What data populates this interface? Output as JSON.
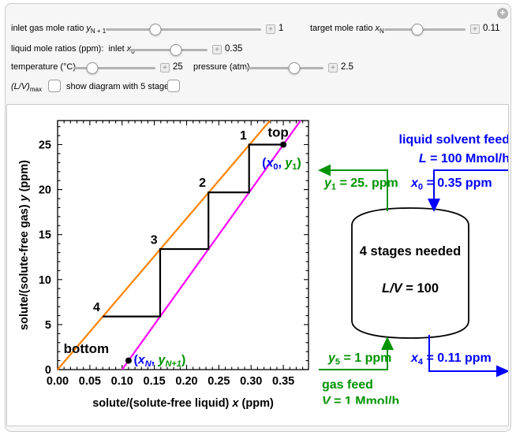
{
  "header": {
    "expand_icon": "+"
  },
  "controls": {
    "plus_icon": "+",
    "sliders": [
      {
        "label_pre": "inlet gas mole ratio ",
        "label_var": "y",
        "label_sub": "N + 1",
        "value": "1",
        "fraction": 0.32
      },
      {
        "label_pre": "target mole ratio ",
        "label_var": "x",
        "label_sub": "N",
        "value": "0.11",
        "fraction": 0.41
      },
      {
        "label_pre": "liquid mole ratios (ppm):  inlet ",
        "label_var": "x",
        "label_sub": "0",
        "value": "0.35",
        "fraction": 0.6
      },
      {
        "label_pre": "temperature (°C)",
        "label_var": "",
        "label_sub": "",
        "value": "25",
        "fraction": 0.23
      },
      {
        "label_pre": "pressure (atm)",
        "label_var": "",
        "label_sub": "",
        "value": "2.5",
        "fraction": 0.63
      }
    ],
    "checkboxes": [
      {
        "label_main": "(L/V)",
        "label_sub": "max",
        "checked": false
      },
      {
        "label_main": "show diagram with 5 stages",
        "label_sub": "",
        "checked": false
      }
    ]
  },
  "chart_data": {
    "type": "line",
    "xlabel": "solute/(solute-free liquid) x (ppm)",
    "ylabel": "solute/(solute-free gas) y (ppm)",
    "xlabel_parts": {
      "pre": "solute/(solute-free liquid) ",
      "var": "x",
      "post": " (ppm)"
    },
    "ylabel_parts": {
      "pre": "solute/(solute-free gas) ",
      "var": "y",
      "post": " (ppm)"
    },
    "xlim": [
      0,
      0.389
    ],
    "ylim": [
      0,
      27.67
    ],
    "grid": false,
    "x_ticks": {
      "minor_step": 0.01,
      "major": [
        {
          "v": 0,
          "label": "0.00"
        },
        {
          "v": 0.05,
          "label": "0.05"
        },
        {
          "v": 0.1,
          "label": "0.10"
        },
        {
          "v": 0.15,
          "label": "0.15"
        },
        {
          "v": 0.2,
          "label": "0.20"
        },
        {
          "v": 0.25,
          "label": "0.25"
        },
        {
          "v": 0.3,
          "label": "0.30"
        },
        {
          "v": 0.35,
          "label": "0.35"
        }
      ]
    },
    "y_ticks": {
      "minor_step": 1,
      "major": [
        {
          "v": 0,
          "label": "0"
        },
        {
          "v": 5,
          "label": "5"
        },
        {
          "v": 10,
          "label": "10"
        },
        {
          "v": 15,
          "label": "15"
        },
        {
          "v": 20,
          "label": "20"
        },
        {
          "v": 25,
          "label": "25"
        }
      ]
    },
    "series": [
      {
        "name": "equilibrium-line",
        "color": "#ff8300",
        "width": 2.2,
        "points": [
          [
            0,
            0
          ],
          [
            0.3294,
            27.67
          ]
        ]
      },
      {
        "name": "operating-line",
        "color": "#ff00ff",
        "width": 2.2,
        "points": [
          [
            0.1,
            0
          ],
          [
            0.3767,
            27.67
          ]
        ]
      },
      {
        "name": "stage-staircase",
        "color": "#000000",
        "width": 2.2,
        "points": [
          [
            0.35,
            25
          ],
          [
            0.2969,
            25
          ],
          [
            0.2969,
            19.69
          ],
          [
            0.2339,
            19.69
          ],
          [
            0.2339,
            13.39
          ],
          [
            0.159,
            13.39
          ],
          [
            0.159,
            5.9
          ],
          [
            0.0701,
            5.9
          ]
        ]
      }
    ],
    "stage_labels": [
      {
        "text": "1",
        "x": 0.288,
        "y": 26.0
      },
      {
        "text": "2",
        "x": 0.2245,
        "y": 20.75
      },
      {
        "text": "3",
        "x": 0.1495,
        "y": 14.4
      },
      {
        "text": "4",
        "x": 0.0605,
        "y": 6.9
      }
    ],
    "annotations": [
      {
        "text": "top",
        "x": 0.342,
        "y": 26.4
      },
      {
        "text": "bottom",
        "x": 0.0445,
        "y": 2.35
      }
    ],
    "point_label_colors": {
      "open": "#0000ff",
      "x_part": "#0000ff",
      "y_part": "#009300",
      "close": "#009300"
    },
    "points": [
      {
        "x": 0.35,
        "y": 25,
        "label_parts": {
          "open": "(",
          "x_var": "x",
          "x_sub": "0",
          "comma": ", ",
          "y_var": "y",
          "y_sub": "1",
          "close": ")"
        },
        "label_anchor": [
          0.317,
          23.0
        ]
      },
      {
        "x": 0.11,
        "y": 1,
        "label_parts": {
          "open": "(",
          "x_var": "x",
          "x_sub": "N",
          "comma": ", ",
          "y_var": "y",
          "y_sub": "N+1",
          "close": ")"
        },
        "label_anchor": [
          0.118,
          1.1
        ]
      }
    ]
  },
  "diagram": {
    "palette": {
      "stream_green": "#009300",
      "stream_blue": "#0000ff",
      "vessel_stroke": "#000000"
    },
    "liquid_feed_title": "liquid solvent feed",
    "liquid_feed_rate": {
      "var": "L",
      "rest": " = 100 Mmol/h"
    },
    "x0_label": {
      "var": "x",
      "sub": "0",
      "rest": " = 0.35 ppm"
    },
    "y1_label": {
      "var": "y",
      "sub": "1",
      "rest": " = 25. ppm"
    },
    "vessel_line1": "4 stages needed",
    "vessel_line2": {
      "var": "L/V",
      "rest": " = 100"
    },
    "y5_label": {
      "var": "y",
      "sub": "5",
      "rest": " = 1 ppm"
    },
    "x4_label": {
      "var": "x",
      "sub": "4",
      "rest": " = 0.11 ppm"
    },
    "gas_feed_title": "gas feed",
    "gas_feed_rate": {
      "var": "V",
      "rest": " = 1 Mmol/h"
    }
  }
}
